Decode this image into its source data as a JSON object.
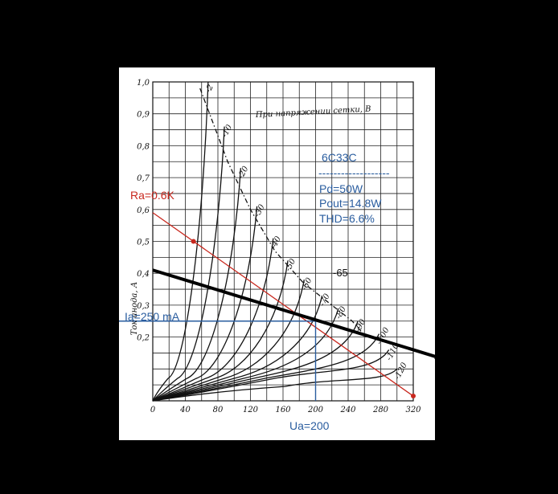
{
  "chart_data": {
    "type": "line",
    "title": "При напряжении сетки, В",
    "ylabel": "Ток анода, А",
    "xlabel": "",
    "xlim": [
      0,
      320
    ],
    "ylim": [
      0,
      1.0
    ],
    "x_ticks": [
      0,
      40,
      80,
      120,
      160,
      200,
      240,
      280,
      320
    ],
    "y_ticks": [
      {
        "v": 0.2,
        "label": "0,2"
      },
      {
        "v": 0.3,
        "label": "0,3"
      },
      {
        "v": 0.4,
        "label": "0,4"
      },
      {
        "v": 0.5,
        "label": "0,5"
      },
      {
        "v": 0.6,
        "label": "0,6"
      },
      {
        "v": 0.7,
        "label": "0,7"
      },
      {
        "v": 0.8,
        "label": "0,8"
      },
      {
        "v": 0.9,
        "label": "0,9"
      },
      {
        "v": 1.0,
        "label": "1,0"
      }
    ],
    "grid": true,
    "series": [
      {
        "name": "-2",
        "bend": 10,
        "top": [
          68,
          1.0
        ]
      },
      {
        "name": "-10",
        "bend": 20,
        "top": [
          88,
          0.86
        ]
      },
      {
        "name": "-20",
        "bend": 30,
        "top": [
          108,
          0.73
        ]
      },
      {
        "name": "-30",
        "bend": 40,
        "top": [
          128,
          0.61
        ]
      },
      {
        "name": "-40",
        "bend": 50,
        "top": [
          148,
          0.51
        ]
      },
      {
        "name": "-50",
        "bend": 60,
        "top": [
          166,
          0.44
        ]
      },
      {
        "name": "-60",
        "bend": 70,
        "top": [
          186,
          0.38
        ]
      },
      {
        "name": "-70",
        "bend": 80,
        "top": [
          208,
          0.33
        ]
      },
      {
        "name": "-80",
        "bend": 90,
        "top": [
          228,
          0.29
        ]
      },
      {
        "name": "-90",
        "bend": 100,
        "top": [
          252,
          0.25
        ]
      },
      {
        "name": "-100",
        "bend": 112,
        "top": [
          278,
          0.21
        ]
      },
      {
        "name": "-110",
        "bend": 124,
        "top": [
          290,
          0.16
        ]
      },
      {
        "name": "-120",
        "bend": 138,
        "top": [
          300,
          0.1
        ]
      }
    ],
    "dashdot_curve": [
      [
        58,
        0.98
      ],
      [
        92,
        0.75
      ],
      [
        120,
        0.6
      ],
      [
        150,
        0.47
      ],
      [
        185,
        0.37
      ],
      [
        215,
        0.31
      ],
      [
        245,
        0.25
      ],
      [
        262,
        0.2
      ]
    ],
    "load_line_red": {
      "label": "Ra=0.6K",
      "points": [
        [
          0,
          0.59
        ],
        [
          320,
          0.015
        ]
      ],
      "marks": [
        [
          50,
          0.5
        ],
        [
          320,
          0.015
        ]
      ]
    },
    "load_line_black": {
      "points": [
        [
          0,
          0.41
        ],
        [
          320,
          0.16
        ]
      ]
    },
    "operating_point": {
      "x": 200,
      "y": 0.25
    },
    "annotations": {
      "tube": "6C33C",
      "separator": "-------------------",
      "pd": "Pd=50W",
      "pout": "Pout=14.8W",
      "thd": "THD=6.6%",
      "ia": "Ia=250 mA",
      "ua": "Ua=200",
      "grid_65": "-65"
    }
  }
}
